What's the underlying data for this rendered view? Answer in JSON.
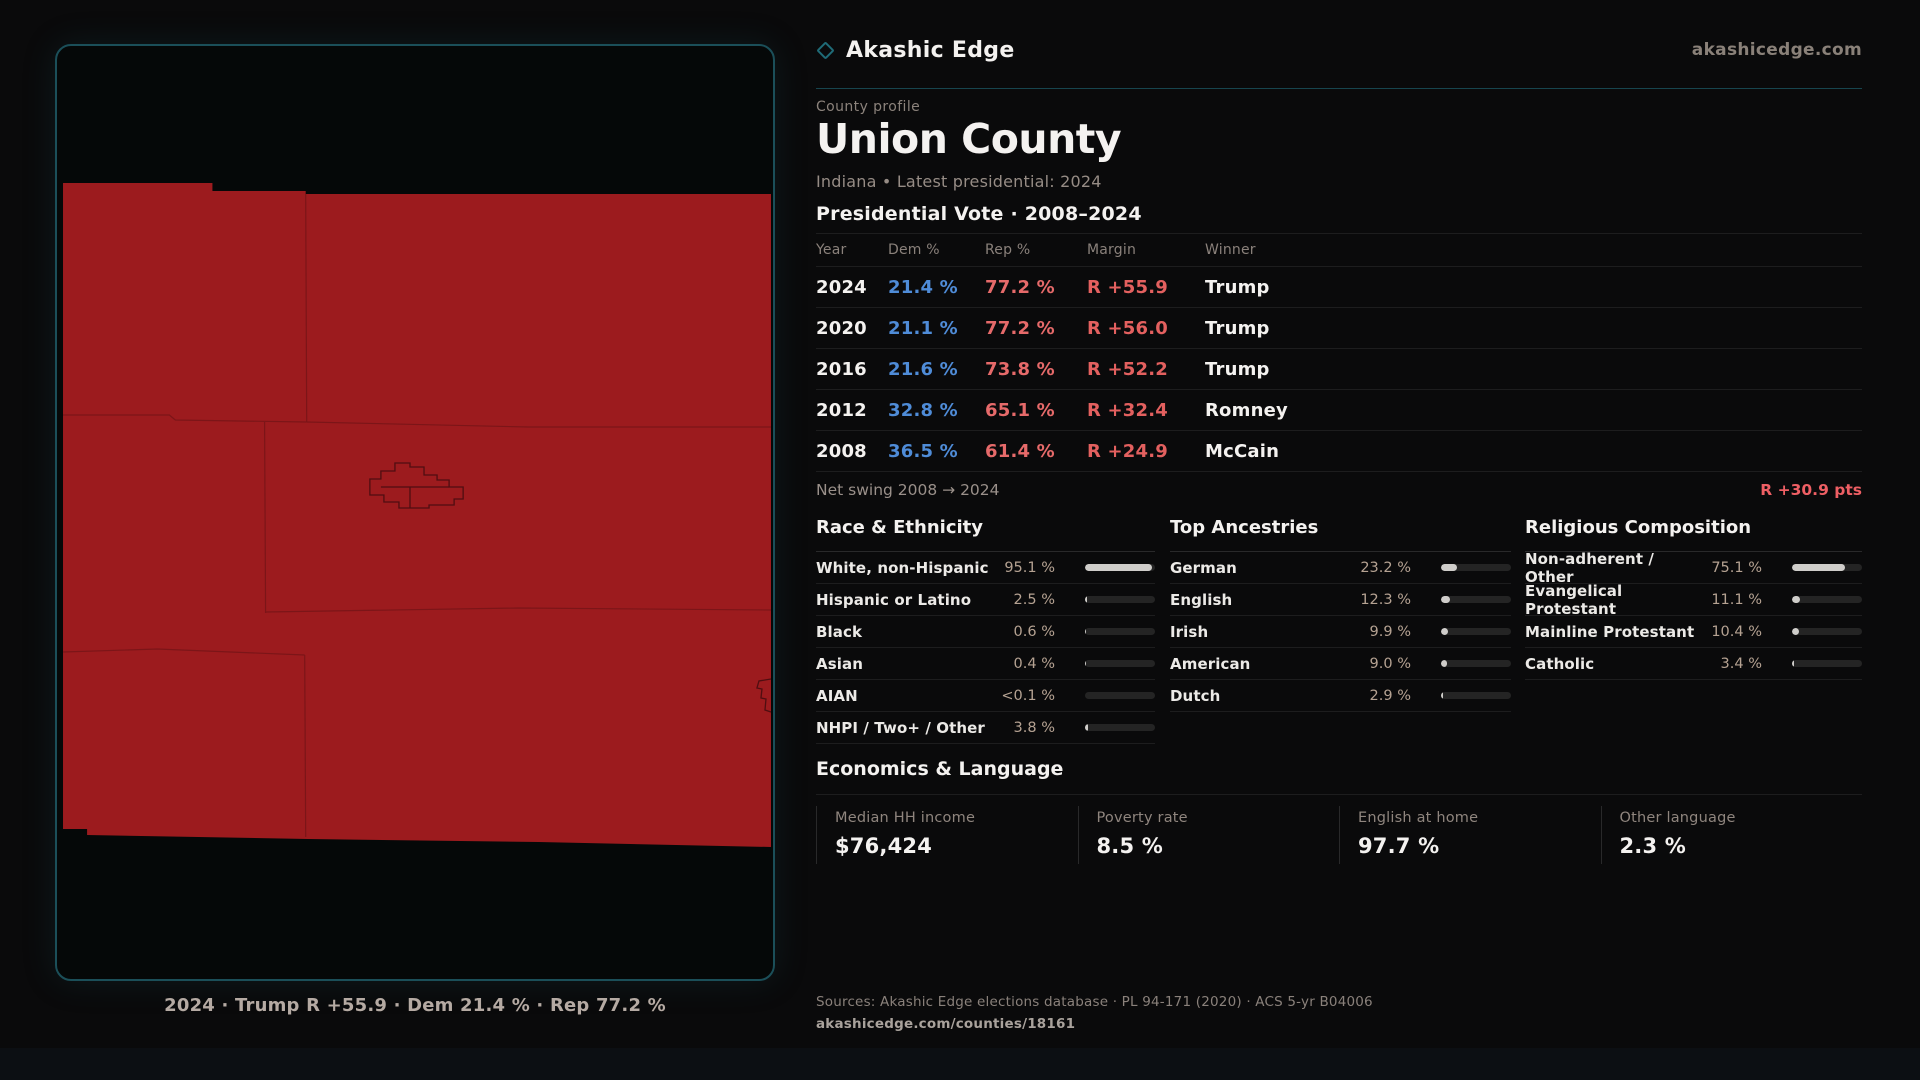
{
  "brand": {
    "name": "Akashic Edge",
    "site": "akashicedge.com"
  },
  "profile": {
    "eyebrow": "County profile",
    "title": "Union County",
    "subtitle": "Indiana • Latest presidential: 2024"
  },
  "vote": {
    "heading": "Presidential Vote · 2008–2024",
    "columns": {
      "year": "Year",
      "dem": "Dem %",
      "rep": "Rep %",
      "margin": "Margin",
      "winner": "Winner"
    },
    "rows": [
      {
        "year": "2024",
        "dem": "21.4 %",
        "rep": "77.2 %",
        "margin": "R +55.9",
        "winner": "Trump"
      },
      {
        "year": "2020",
        "dem": "21.1 %",
        "rep": "77.2 %",
        "margin": "R +56.0",
        "winner": "Trump"
      },
      {
        "year": "2016",
        "dem": "21.6 %",
        "rep": "73.8 %",
        "margin": "R +52.2",
        "winner": "Trump"
      },
      {
        "year": "2012",
        "dem": "32.8 %",
        "rep": "65.1 %",
        "margin": "R +32.4",
        "winner": "Romney"
      },
      {
        "year": "2008",
        "dem": "36.5 %",
        "rep": "61.4 %",
        "margin": "R +24.9",
        "winner": "McCain"
      }
    ],
    "net_swing_label": "Net swing 2008 → 2024",
    "net_swing_value": "R +30.9 pts"
  },
  "race": {
    "heading": "Race & Ethnicity",
    "rows": [
      {
        "label": "White, non-Hispanic",
        "value": "95.1 %",
        "pct": 95.1
      },
      {
        "label": "Hispanic or Latino",
        "value": "2.5 %",
        "pct": 2.5
      },
      {
        "label": "Black",
        "value": "0.6 %",
        "pct": 0.6
      },
      {
        "label": "Asian",
        "value": "0.4 %",
        "pct": 0.4
      },
      {
        "label": "AIAN",
        "value": "<0.1 %",
        "pct": 0.05
      },
      {
        "label": "NHPI / Two+ / Other",
        "value": "3.8 %",
        "pct": 3.8
      }
    ]
  },
  "ancestries": {
    "heading": "Top Ancestries",
    "rows": [
      {
        "label": "German",
        "value": "23.2 %",
        "pct": 23.2
      },
      {
        "label": "English",
        "value": "12.3 %",
        "pct": 12.3
      },
      {
        "label": "Irish",
        "value": "9.9 %",
        "pct": 9.9
      },
      {
        "label": "American",
        "value": "9.0 %",
        "pct": 9.0
      },
      {
        "label": "Dutch",
        "value": "2.9 %",
        "pct": 2.9
      }
    ]
  },
  "religion": {
    "heading": "Religious Composition",
    "rows": [
      {
        "label": "Non-adherent / Other",
        "value": "75.1 %",
        "pct": 75.1
      },
      {
        "label": "Evangelical Protestant",
        "value": "11.1 %",
        "pct": 11.1
      },
      {
        "label": "Mainline Protestant",
        "value": "10.4 %",
        "pct": 10.4
      },
      {
        "label": "Catholic",
        "value": "3.4 %",
        "pct": 3.4
      }
    ]
  },
  "economics": {
    "heading": "Economics & Language",
    "stats": [
      {
        "label": "Median HH income",
        "value": "$76,424"
      },
      {
        "label": "Poverty rate",
        "value": "8.5 %"
      },
      {
        "label": "English at home",
        "value": "97.7 %"
      },
      {
        "label": "Other language",
        "value": "2.3 %"
      }
    ]
  },
  "map": {
    "caption": "2024 · Trump R +55.9 · Dem 21.4 % · Rep 77.2 %",
    "fill": "#9c1b1e"
  },
  "footer": {
    "sources": "Sources: Akashic Edge elections database · PL 94-171 (2020) · ACS 5-yr B04006",
    "permalink": "akashicedge.com/counties/18161"
  },
  "colors": {
    "accent_teal": "#1b4f59",
    "dem_blue": "#4f8cd8",
    "rep_red": "#e66a6a",
    "margin_red": "#e3605f",
    "swing_red": "#ee5f64",
    "map_red": "#9c1b1e",
    "bar_fill": "#cfcdca"
  }
}
